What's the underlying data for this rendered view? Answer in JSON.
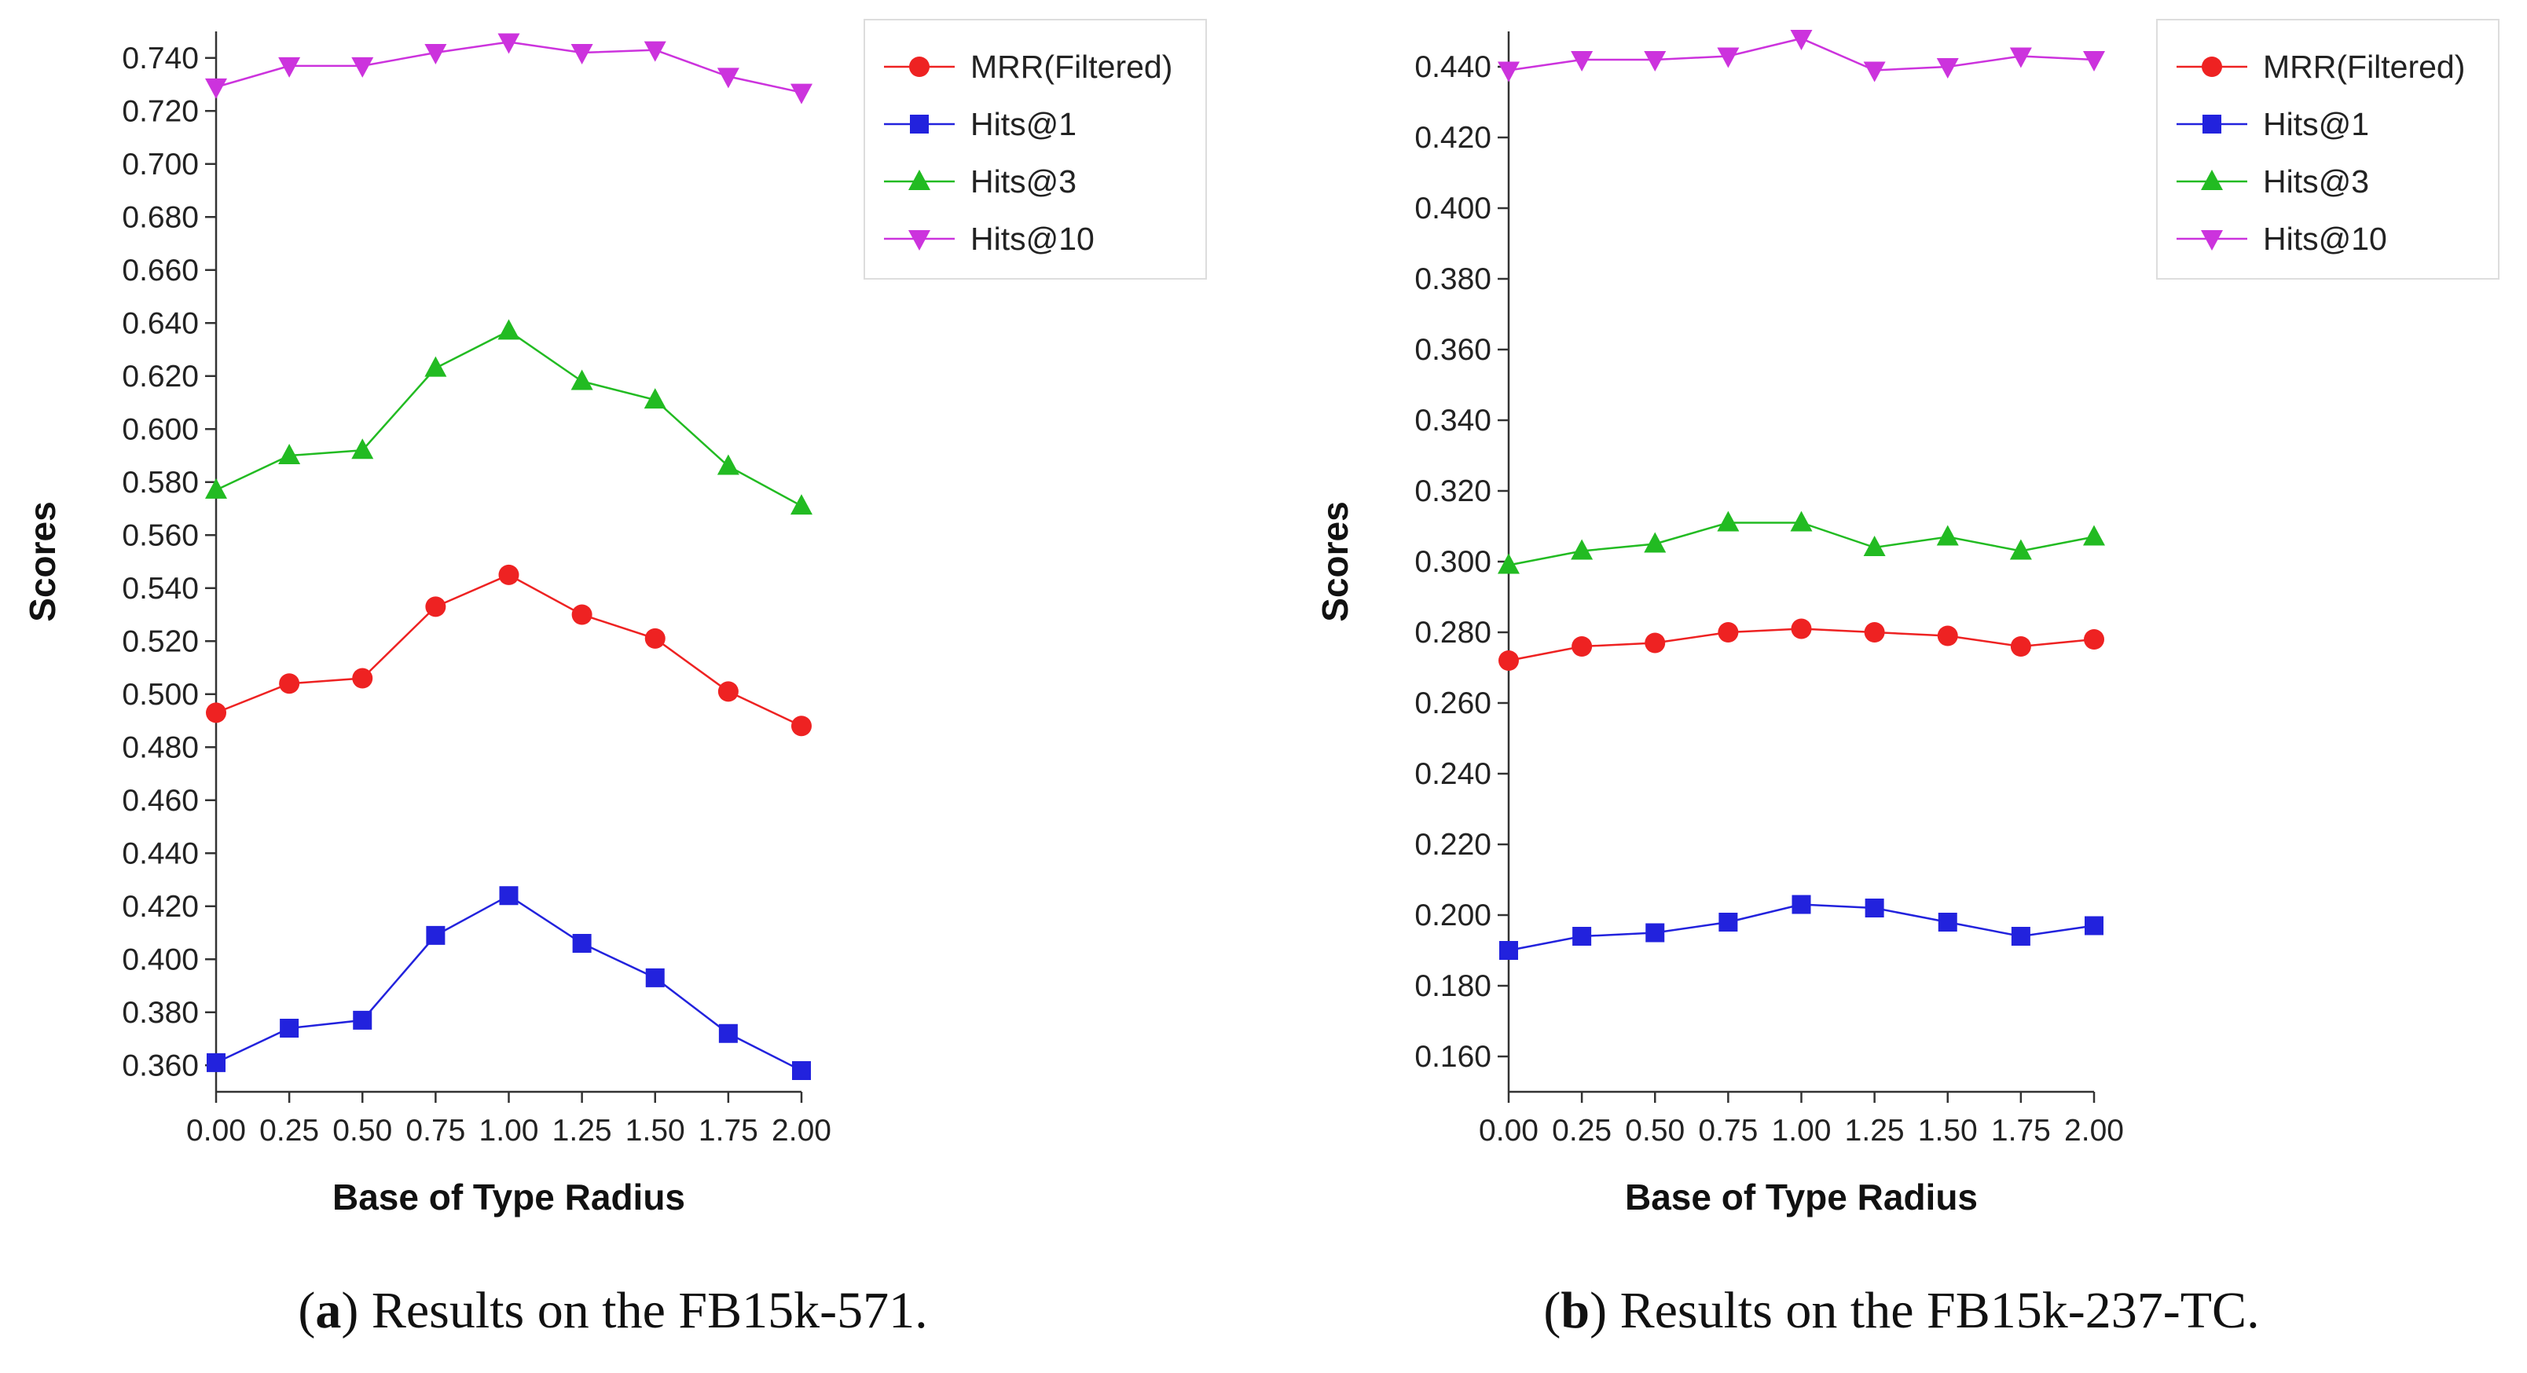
{
  "chart_data": [
    {
      "type": "line",
      "title": "",
      "xlabel": "Base of Type Radius",
      "ylabel": "Scores",
      "x": [
        0.0,
        0.25,
        0.5,
        0.75,
        1.0,
        1.25,
        1.5,
        1.75,
        2.0
      ],
      "x_tick_labels": [
        "0.00",
        "0.25",
        "0.50",
        "0.75",
        "1.00",
        "1.25",
        "1.50",
        "1.75",
        "2.00"
      ],
      "xlim": [
        0.0,
        2.0
      ],
      "ylim": [
        0.35,
        0.75
      ],
      "y_ticks": [
        0.36,
        0.38,
        0.4,
        0.42,
        0.44,
        0.46,
        0.48,
        0.5,
        0.52,
        0.54,
        0.56,
        0.58,
        0.6,
        0.62,
        0.64,
        0.66,
        0.68,
        0.7,
        0.72,
        0.74
      ],
      "y_tick_labels": [
        "0.360",
        "0.380",
        "0.400",
        "0.420",
        "0.440",
        "0.460",
        "0.480",
        "0.500",
        "0.520",
        "0.540",
        "0.560",
        "0.580",
        "0.600",
        "0.620",
        "0.640",
        "0.660",
        "0.680",
        "0.700",
        "0.720",
        "0.740"
      ],
      "legend_position": "top-right",
      "grid": false,
      "series": [
        {
          "name": "MRR(Filtered)",
          "color": "#ee2222",
          "marker": "circle",
          "values": [
            0.493,
            0.504,
            0.506,
            0.533,
            0.545,
            0.53,
            0.521,
            0.501,
            0.488
          ]
        },
        {
          "name": "Hits@1",
          "color": "#2222dd",
          "marker": "square",
          "values": [
            0.361,
            0.374,
            0.377,
            0.409,
            0.424,
            0.406,
            0.393,
            0.372,
            0.358
          ]
        },
        {
          "name": "Hits@3",
          "color": "#22bb22",
          "marker": "triangle-up",
          "values": [
            0.577,
            0.59,
            0.592,
            0.623,
            0.637,
            0.618,
            0.611,
            0.586,
            0.571
          ]
        },
        {
          "name": "Hits@10",
          "color": "#cc33dd",
          "marker": "triangle-down",
          "values": [
            0.729,
            0.737,
            0.737,
            0.742,
            0.746,
            0.742,
            0.743,
            0.733,
            0.727
          ]
        }
      ],
      "caption": {
        "letter": "a",
        "text": ") Results on the FB15k-571."
      }
    },
    {
      "type": "line",
      "title": "",
      "xlabel": "Base of Type Radius",
      "ylabel": "Scores",
      "x": [
        0.0,
        0.25,
        0.5,
        0.75,
        1.0,
        1.25,
        1.5,
        1.75,
        2.0
      ],
      "x_tick_labels": [
        "0.00",
        "0.25",
        "0.50",
        "0.75",
        "1.00",
        "1.25",
        "1.50",
        "1.75",
        "2.00"
      ],
      "xlim": [
        0.0,
        2.0
      ],
      "ylim": [
        0.15,
        0.45
      ],
      "y_ticks": [
        0.16,
        0.18,
        0.2,
        0.22,
        0.24,
        0.26,
        0.28,
        0.3,
        0.32,
        0.34,
        0.36,
        0.38,
        0.4,
        0.42,
        0.44
      ],
      "y_tick_labels": [
        "0.160",
        "0.180",
        "0.200",
        "0.220",
        "0.240",
        "0.260",
        "0.280",
        "0.300",
        "0.320",
        "0.340",
        "0.360",
        "0.380",
        "0.400",
        "0.420",
        "0.440"
      ],
      "legend_position": "top-right",
      "grid": false,
      "series": [
        {
          "name": "MRR(Filtered)",
          "color": "#ee2222",
          "marker": "circle",
          "values": [
            0.272,
            0.276,
            0.277,
            0.28,
            0.281,
            0.28,
            0.279,
            0.276,
            0.278
          ]
        },
        {
          "name": "Hits@1",
          "color": "#2222dd",
          "marker": "square",
          "values": [
            0.19,
            0.194,
            0.195,
            0.198,
            0.203,
            0.202,
            0.198,
            0.194,
            0.197
          ]
        },
        {
          "name": "Hits@3",
          "color": "#22bb22",
          "marker": "triangle-up",
          "values": [
            0.299,
            0.303,
            0.305,
            0.311,
            0.311,
            0.304,
            0.307,
            0.303,
            0.307
          ]
        },
        {
          "name": "Hits@10",
          "color": "#cc33dd",
          "marker": "triangle-down",
          "values": [
            0.439,
            0.442,
            0.442,
            0.443,
            0.448,
            0.439,
            0.44,
            0.443,
            0.442
          ]
        }
      ],
      "caption": {
        "letter": "b",
        "text": ") Results on the FB15k-237-TC."
      }
    }
  ]
}
